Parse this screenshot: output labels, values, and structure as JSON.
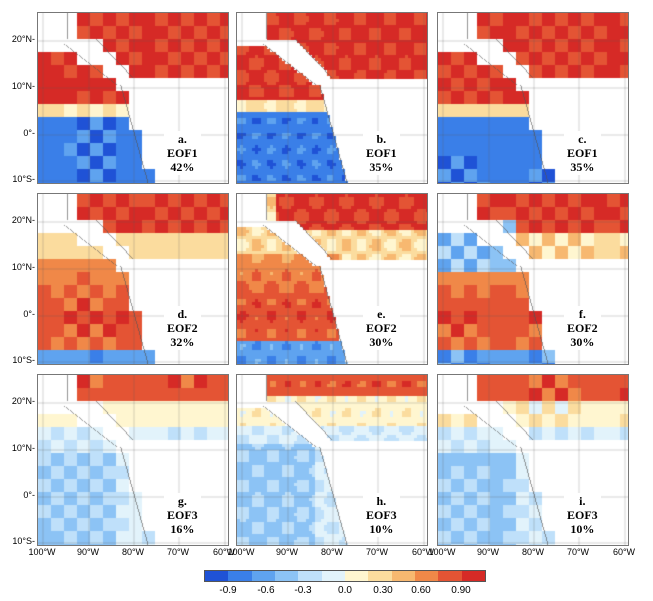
{
  "panels": [
    {
      "letter": "a.",
      "mode": "EOF1",
      "variance": "42%"
    },
    {
      "letter": "b.",
      "mode": "EOF1",
      "variance": "35%"
    },
    {
      "letter": "c.",
      "mode": "EOF1",
      "variance": "35%"
    },
    {
      "letter": "d.",
      "mode": "EOF2",
      "variance": "32%"
    },
    {
      "letter": "e.",
      "mode": "EOF2",
      "variance": "30%"
    },
    {
      "letter": "f.",
      "mode": "EOF2",
      "variance": "30%"
    },
    {
      "letter": "g.",
      "mode": "EOF3",
      "variance": "16%"
    },
    {
      "letter": "h.",
      "mode": "EOF3",
      "variance": "10%"
    },
    {
      "letter": "i.",
      "mode": "EOF3",
      "variance": "10%"
    }
  ],
  "lat_labels": [
    "20°N-",
    "10°N-",
    "0°-",
    "10°S-"
  ],
  "lon_labels": [
    "100°W",
    "90°W",
    "80°W",
    "70°W",
    "60°W"
  ],
  "colorbar": {
    "labels": [
      "-0.9",
      "-0.6",
      "-0.3",
      "0.0",
      "0.30",
      "0.60",
      "0.90"
    ],
    "colors": [
      "#1f52d6",
      "#3a7fe8",
      "#5fa3ef",
      "#8cc3f5",
      "#bfe0fa",
      "#e2f3fb",
      "#fff6d0",
      "#fbdc9e",
      "#f7b870",
      "#f08848",
      "#e45434",
      "#d62a26"
    ]
  }
}
